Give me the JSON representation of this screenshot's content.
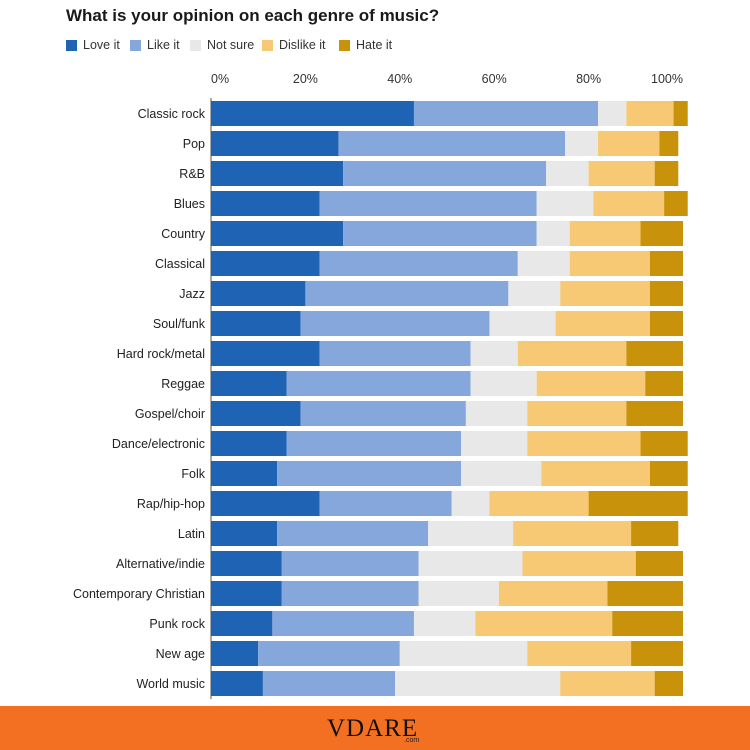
{
  "chart_data": {
    "type": "bar",
    "orientation": "horizontal",
    "stacked": true,
    "title": "What is your opinion on each genre of music?",
    "legend_position": "top-left",
    "xlim": [
      0,
      100
    ],
    "x_ticks": [
      "0%",
      "20%",
      "40%",
      "60%",
      "80%",
      "100%"
    ],
    "categories": [
      "Classic rock",
      "Pop",
      "R&B",
      "Blues",
      "Country",
      "Classical",
      "Jazz",
      "Soul/funk",
      "Hard rock/metal",
      "Reggae",
      "Gospel/choir",
      "Dance/electronic",
      "Folk",
      "Rap/hip-hop",
      "Latin",
      "Alternative/indie",
      "Contemporary Christian",
      "Punk rock",
      "New age",
      "World music"
    ],
    "series": [
      {
        "name": "Love it",
        "color": "#1f63b4",
        "values": [
          43,
          27,
          28,
          23,
          28,
          23,
          20,
          19,
          23,
          16,
          19,
          16,
          14,
          23,
          14,
          15,
          15,
          13,
          10,
          11
        ]
      },
      {
        "name": "Like it",
        "color": "#86a7db",
        "values": [
          39,
          48,
          43,
          46,
          41,
          42,
          43,
          40,
          32,
          39,
          35,
          37,
          39,
          28,
          32,
          29,
          29,
          30,
          30,
          28
        ]
      },
      {
        "name": "Not sure",
        "color": "#e8e8e8",
        "values": [
          6,
          7,
          9,
          12,
          7,
          11,
          11,
          14,
          10,
          14,
          13,
          14,
          17,
          8,
          18,
          22,
          17,
          13,
          27,
          35
        ]
      },
      {
        "name": "Dislike it",
        "color": "#f8c974",
        "values": [
          10,
          13,
          14,
          15,
          15,
          17,
          19,
          20,
          23,
          23,
          21,
          24,
          23,
          21,
          25,
          24,
          23,
          29,
          22,
          20
        ]
      },
      {
        "name": "Hate it",
        "color": "#c8930a",
        "values": [
          3,
          4,
          5,
          5,
          9,
          7,
          7,
          7,
          12,
          8,
          12,
          10,
          8,
          21,
          10,
          10,
          16,
          15,
          11,
          6
        ]
      }
    ]
  },
  "footer": {
    "logo_text": "VDARE",
    "logo_sub": ".com",
    "background_color": "#f36f21"
  }
}
